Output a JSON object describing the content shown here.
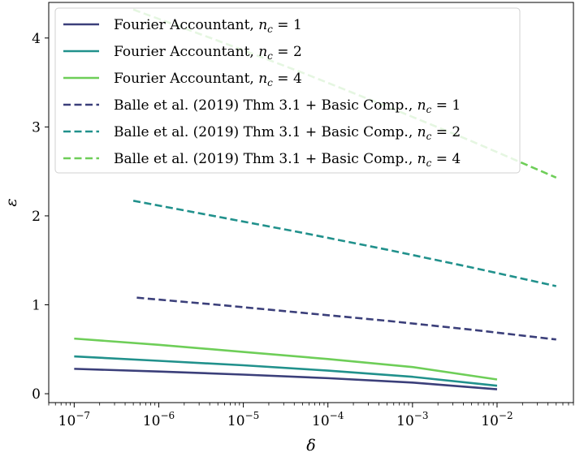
{
  "chart_data": {
    "type": "line",
    "xlabel": "δ",
    "ylabel": "ε",
    "xscale": "log",
    "xlim": [
      5e-08,
      0.08
    ],
    "ylim": [
      -0.1,
      4.4
    ],
    "xticks": [
      {
        "value": 1e-07,
        "base": "10",
        "exp": "−7"
      },
      {
        "value": 1e-06,
        "base": "10",
        "exp": "−6"
      },
      {
        "value": 1e-05,
        "base": "10",
        "exp": "−5"
      },
      {
        "value": 0.0001,
        "base": "10",
        "exp": "−4"
      },
      {
        "value": 0.001,
        "base": "10",
        "exp": "−3"
      },
      {
        "value": 0.01,
        "base": "10",
        "exp": "−2"
      }
    ],
    "yticks": [
      0,
      1,
      2,
      3,
      4
    ],
    "grid": false,
    "legend_position": "top-left",
    "series": [
      {
        "name": "Fourier Accountant, n_c = 1",
        "label_text": "Fourier Accountant, ",
        "nc": "1",
        "color": "#3b3f7a",
        "dash": "solid",
        "x": [
          1e-07,
          1e-06,
          1e-05,
          0.0001,
          0.001,
          0.01
        ],
        "y": [
          0.28,
          0.25,
          0.215,
          0.175,
          0.125,
          0.05
        ]
      },
      {
        "name": "Fourier Accountant, n_c = 2",
        "label_text": "Fourier Accountant, ",
        "nc": "2",
        "color": "#21918c",
        "dash": "solid",
        "x": [
          1e-07,
          1e-06,
          1e-05,
          0.0001,
          0.001,
          0.01
        ],
        "y": [
          0.42,
          0.37,
          0.32,
          0.26,
          0.19,
          0.09
        ]
      },
      {
        "name": "Fourier Accountant, n_c = 4",
        "label_text": "Fourier Accountant, ",
        "nc": "4",
        "color": "#6ece58",
        "dash": "solid",
        "x": [
          1e-07,
          1e-06,
          1e-05,
          0.0001,
          0.001,
          0.01
        ],
        "y": [
          0.62,
          0.55,
          0.47,
          0.39,
          0.3,
          0.16
        ]
      },
      {
        "name": "Balle et al. (2019) Thm 3.1 + Basic Comp., n_c = 1",
        "label_text": "Balle et al. (2019) Thm 3.1 + Basic Comp., ",
        "nc": "1",
        "color": "#3b3f7a",
        "dash": "dashed",
        "x": [
          5.5e-07,
          5e-06,
          5e-05,
          0.0005,
          0.005,
          0.05
        ],
        "y": [
          1.08,
          1.0,
          0.91,
          0.82,
          0.72,
          0.61
        ]
      },
      {
        "name": "Balle et al. (2019) Thm 3.1 + Basic Comp., n_c = 2",
        "label_text": "Balle et al. (2019) Thm 3.1 + Basic Comp., ",
        "nc": "2",
        "color": "#21918c",
        "dash": "dashed",
        "x": [
          5e-07,
          5e-06,
          5e-05,
          0.0005,
          0.005,
          0.05
        ],
        "y": [
          2.17,
          1.99,
          1.81,
          1.62,
          1.42,
          1.21
        ]
      },
      {
        "name": "Balle et al. (2019) Thm 3.1 + Basic Comp., n_c = 4",
        "label_text": "Balle et al. (2019) Thm 3.1 + Basic Comp., ",
        "nc": "4",
        "color": "#6ece58",
        "dash": "dashed",
        "x": [
          5e-07,
          5e-06,
          5e-05,
          0.0005,
          0.005,
          0.05
        ],
        "y": [
          4.32,
          3.97,
          3.61,
          3.23,
          2.84,
          2.43
        ]
      }
    ]
  }
}
